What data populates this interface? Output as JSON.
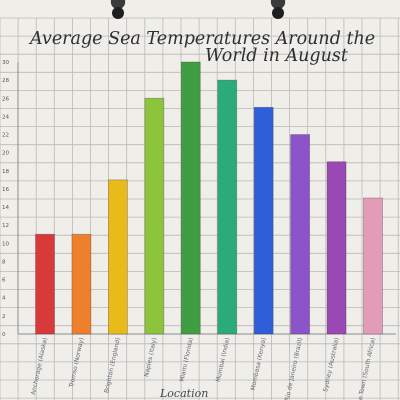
{
  "chart_data": {
    "type": "bar",
    "title": "Average Sea Temperatures Around the World in August",
    "title_lines": [
      "Average Sea Temperatures Around the",
      "World in August"
    ],
    "xlabel": "Location",
    "ylabel": "",
    "ylim": [
      0,
      30
    ],
    "yticks": [
      0,
      2,
      4,
      6,
      8,
      10,
      12,
      14,
      16,
      18,
      20,
      22,
      24,
      26,
      28,
      30
    ],
    "grid": true,
    "categories": [
      "Anchorage (Alaska)",
      "Tromso (Norway)",
      "Brighton (England)",
      "Naples (Italy)",
      "Miami (Florida)",
      "Mumbai (India)",
      "Mombasa (Kenya)",
      "Rio de Janeiro (Brazil)",
      "Sydney (Australia)",
      "Cape Town (South Africa)"
    ],
    "values": [
      11,
      11,
      17,
      26,
      30,
      28,
      25,
      22,
      19,
      15
    ],
    "colors": [
      "#d8393a",
      "#ee7f2d",
      "#e8bb1b",
      "#8cc43b",
      "#3f9e42",
      "#2bab7a",
      "#2f5fd8",
      "#8b55c9",
      "#9a48b3",
      "#e39cb7"
    ]
  }
}
